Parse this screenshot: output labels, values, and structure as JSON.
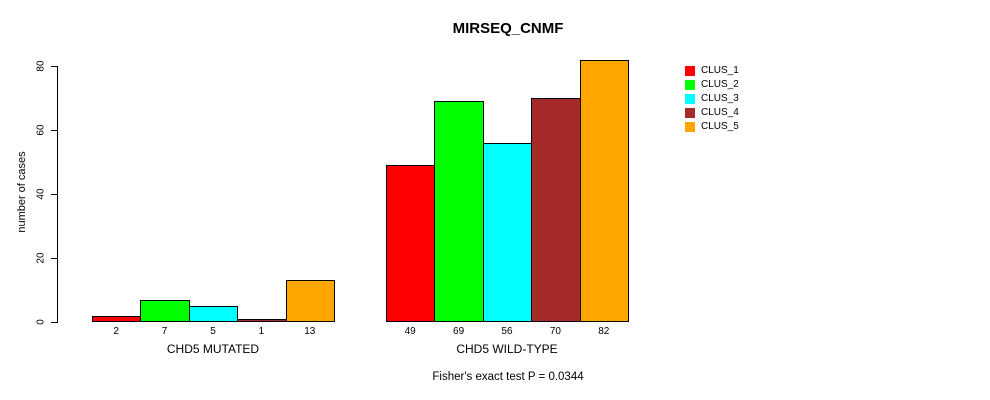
{
  "chart_data": {
    "type": "bar",
    "title": "MIRSEQ_CNMF",
    "ylabel": "number of cases",
    "xlabel": "",
    "yticks": [
      0,
      20,
      40,
      60,
      80
    ],
    "ylim": [
      0,
      82
    ],
    "grid": false,
    "legend_position": "right",
    "categories": [
      "CHD5 MUTATED",
      "CHD5 WILD-TYPE"
    ],
    "series": [
      {
        "name": "CLUS_1",
        "color": "#FF0000",
        "values": [
          2,
          49
        ]
      },
      {
        "name": "CLUS_2",
        "color": "#00FF00",
        "values": [
          7,
          69
        ]
      },
      {
        "name": "CLUS_3",
        "color": "#00FFFF",
        "values": [
          5,
          56
        ]
      },
      {
        "name": "CLUS_4",
        "color": "#A52A2A",
        "values": [
          1,
          70
        ]
      },
      {
        "name": "CLUS_5",
        "color": "#FFA500",
        "values": [
          13,
          82
        ]
      }
    ],
    "bar_value_labels": {
      "CHD5 MUTATED": [
        "2",
        "7",
        "5",
        "1",
        "13"
      ],
      "CHD5 WILD-TYPE": [
        "49",
        "69",
        "56",
        "70",
        "82"
      ]
    },
    "annotation": "Fisher's exact test P = 0.0344"
  }
}
